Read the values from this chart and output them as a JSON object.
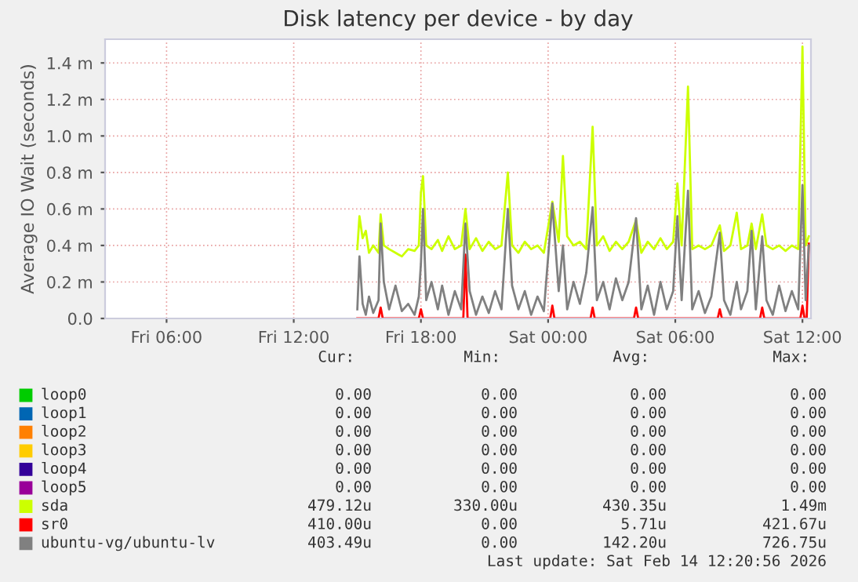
{
  "chart_data": {
    "type": "line",
    "title": "Disk latency per device - by day",
    "ylabel": "Average IO Wait (seconds)",
    "xlim": [
      "2026-02-13T03:06",
      "2026-02-14T12:24"
    ],
    "ylim": [
      0,
      1.53
    ],
    "xticks": [
      {
        "value": "2026-02-13T06:00",
        "label": "Fri 06:00"
      },
      {
        "value": "2026-02-13T12:00",
        "label": "Fri 12:00"
      },
      {
        "value": "2026-02-13T18:00",
        "label": "Fri 18:00"
      },
      {
        "value": "2026-02-14T00:00",
        "label": "Sat 00:00"
      },
      {
        "value": "2026-02-14T06:00",
        "label": "Sat 06:00"
      },
      {
        "value": "2026-02-14T12:00",
        "label": "Sat 12:00"
      }
    ],
    "yticks": [
      {
        "value": 0,
        "label": "0.0"
      },
      {
        "value": 0.2,
        "label": "0.2 m"
      },
      {
        "value": 0.4,
        "label": "0.4 m"
      },
      {
        "value": 0.6,
        "label": "0.6 m"
      },
      {
        "value": 0.8,
        "label": "0.8 m"
      },
      {
        "value": 1.0,
        "label": "1.0 m"
      },
      {
        "value": 1.2,
        "label": "1.2 m"
      },
      {
        "value": 1.4,
        "label": "1.4 m"
      }
    ],
    "grid": true,
    "legend": "bottom",
    "series": [
      {
        "name": "loop0",
        "color": "#00cc00"
      },
      {
        "name": "loop1",
        "color": "#0066b3"
      },
      {
        "name": "loop2",
        "color": "#ff8000"
      },
      {
        "name": "loop3",
        "color": "#ffcc00"
      },
      {
        "name": "loop4",
        "color": "#330099"
      },
      {
        "name": "loop5",
        "color": "#990099"
      },
      {
        "name": "sda",
        "color": "#ccff00",
        "x": [
          "2026-02-13T15:00",
          "2026-02-13T15:06",
          "2026-02-13T15:15",
          "2026-02-13T15:24",
          "2026-02-13T15:33",
          "2026-02-13T15:45",
          "2026-02-13T16:00",
          "2026-02-13T16:06",
          "2026-02-13T16:15",
          "2026-02-13T16:30",
          "2026-02-13T16:48",
          "2026-02-13T17:06",
          "2026-02-13T17:24",
          "2026-02-13T17:42",
          "2026-02-13T17:54",
          "2026-02-13T18:00",
          "2026-02-13T18:06",
          "2026-02-13T18:15",
          "2026-02-13T18:30",
          "2026-02-13T18:48",
          "2026-02-13T19:00",
          "2026-02-13T19:18",
          "2026-02-13T19:36",
          "2026-02-13T19:54",
          "2026-02-13T20:06",
          "2026-02-13T20:18",
          "2026-02-13T20:36",
          "2026-02-13T20:54",
          "2026-02-13T21:12",
          "2026-02-13T21:30",
          "2026-02-13T21:48",
          "2026-02-13T22:06",
          "2026-02-13T22:18",
          "2026-02-13T22:36",
          "2026-02-13T22:54",
          "2026-02-13T23:12",
          "2026-02-13T23:30",
          "2026-02-13T23:48",
          "2026-02-14T00:12",
          "2026-02-14T00:30",
          "2026-02-14T00:42",
          "2026-02-14T00:54",
          "2026-02-14T01:12",
          "2026-02-14T01:30",
          "2026-02-14T01:48",
          "2026-02-14T02:06",
          "2026-02-14T02:18",
          "2026-02-14T02:36",
          "2026-02-14T02:54",
          "2026-02-14T03:12",
          "2026-02-14T03:30",
          "2026-02-14T03:48",
          "2026-02-14T04:09",
          "2026-02-14T04:24",
          "2026-02-14T04:42",
          "2026-02-14T05:00",
          "2026-02-14T05:18",
          "2026-02-14T05:36",
          "2026-02-14T05:54",
          "2026-02-14T06:06",
          "2026-02-14T06:18",
          "2026-02-14T06:36",
          "2026-02-14T06:48",
          "2026-02-14T07:06",
          "2026-02-14T07:24",
          "2026-02-14T07:42",
          "2026-02-14T08:06",
          "2026-02-14T08:18",
          "2026-02-14T08:36",
          "2026-02-14T08:54",
          "2026-02-14T09:06",
          "2026-02-14T09:24",
          "2026-02-14T09:36",
          "2026-02-14T09:48",
          "2026-02-14T10:06",
          "2026-02-14T10:18",
          "2026-02-14T10:36",
          "2026-02-14T10:54",
          "2026-02-14T11:12",
          "2026-02-14T11:30",
          "2026-02-14T11:48",
          "2026-02-14T12:00",
          "2026-02-14T12:09",
          "2026-02-14T12:18"
        ],
        "values": [
          0.38,
          0.56,
          0.44,
          0.48,
          0.36,
          0.4,
          0.36,
          0.57,
          0.4,
          0.38,
          0.36,
          0.34,
          0.38,
          0.37,
          0.4,
          0.69,
          0.78,
          0.4,
          0.38,
          0.43,
          0.37,
          0.45,
          0.38,
          0.4,
          0.6,
          0.38,
          0.44,
          0.37,
          0.42,
          0.38,
          0.4,
          0.8,
          0.4,
          0.36,
          0.42,
          0.38,
          0.4,
          0.36,
          0.64,
          0.42,
          0.89,
          0.45,
          0.4,
          0.42,
          0.38,
          1.05,
          0.4,
          0.45,
          0.37,
          0.42,
          0.38,
          0.42,
          0.54,
          0.36,
          0.42,
          0.38,
          0.44,
          0.38,
          0.42,
          0.74,
          0.4,
          1.27,
          0.38,
          0.4,
          0.38,
          0.4,
          0.51,
          0.37,
          0.4,
          0.58,
          0.38,
          0.4,
          0.52,
          0.38,
          0.57,
          0.4,
          0.38,
          0.4,
          0.37,
          0.4,
          0.38,
          1.49,
          0.4,
          0.45
        ]
      },
      {
        "name": "sr0",
        "color": "#ff0000",
        "x": [
          "2026-02-13T15:00",
          "2026-02-13T16:00",
          "2026-02-13T16:06",
          "2026-02-13T16:12",
          "2026-02-13T17:54",
          "2026-02-13T18:00",
          "2026-02-13T18:06",
          "2026-02-13T20:00",
          "2026-02-13T20:06",
          "2026-02-13T20:12",
          "2026-02-14T00:06",
          "2026-02-14T00:12",
          "2026-02-14T00:18",
          "2026-02-14T02:00",
          "2026-02-14T02:06",
          "2026-02-14T02:12",
          "2026-02-14T04:03",
          "2026-02-14T04:09",
          "2026-02-14T04:15",
          "2026-02-14T08:00",
          "2026-02-14T08:06",
          "2026-02-14T08:12",
          "2026-02-14T10:00",
          "2026-02-14T10:06",
          "2026-02-14T10:12",
          "2026-02-14T11:54",
          "2026-02-14T12:00",
          "2026-02-14T12:06",
          "2026-02-14T12:12",
          "2026-02-14T12:18"
        ],
        "values": [
          0,
          0,
          0.06,
          0,
          0,
          0.05,
          0,
          0,
          0.35,
          0,
          0,
          0.07,
          0,
          0,
          0.06,
          0,
          0,
          0.06,
          0,
          0,
          0.05,
          0,
          0,
          0.06,
          0,
          0,
          0.07,
          0,
          0,
          0.41
        ]
      },
      {
        "name": "ubuntu-vg/ubuntu-lv",
        "color": "#808080",
        "x": [
          "2026-02-13T15:00",
          "2026-02-13T15:06",
          "2026-02-13T15:15",
          "2026-02-13T15:24",
          "2026-02-13T15:33",
          "2026-02-13T15:45",
          "2026-02-13T16:00",
          "2026-02-13T16:06",
          "2026-02-13T16:15",
          "2026-02-13T16:30",
          "2026-02-13T16:48",
          "2026-02-13T17:06",
          "2026-02-13T17:24",
          "2026-02-13T17:42",
          "2026-02-13T17:54",
          "2026-02-13T18:00",
          "2026-02-13T18:06",
          "2026-02-13T18:15",
          "2026-02-13T18:30",
          "2026-02-13T18:48",
          "2026-02-13T19:00",
          "2026-02-13T19:18",
          "2026-02-13T19:36",
          "2026-02-13T19:54",
          "2026-02-13T20:06",
          "2026-02-13T20:18",
          "2026-02-13T20:36",
          "2026-02-13T20:54",
          "2026-02-13T21:12",
          "2026-02-13T21:30",
          "2026-02-13T21:48",
          "2026-02-13T22:06",
          "2026-02-13T22:18",
          "2026-02-13T22:36",
          "2026-02-13T22:54",
          "2026-02-13T23:12",
          "2026-02-13T23:30",
          "2026-02-13T23:48",
          "2026-02-14T00:12",
          "2026-02-14T00:30",
          "2026-02-14T00:42",
          "2026-02-14T00:54",
          "2026-02-14T01:12",
          "2026-02-14T01:30",
          "2026-02-14T01:48",
          "2026-02-14T02:06",
          "2026-02-14T02:18",
          "2026-02-14T02:36",
          "2026-02-14T02:54",
          "2026-02-14T03:12",
          "2026-02-14T03:30",
          "2026-02-14T03:48",
          "2026-02-14T04:09",
          "2026-02-14T04:24",
          "2026-02-14T04:42",
          "2026-02-14T05:00",
          "2026-02-14T05:18",
          "2026-02-14T05:36",
          "2026-02-14T05:54",
          "2026-02-14T06:06",
          "2026-02-14T06:18",
          "2026-02-14T06:36",
          "2026-02-14T06:48",
          "2026-02-14T07:06",
          "2026-02-14T07:24",
          "2026-02-14T07:42",
          "2026-02-14T08:06",
          "2026-02-14T08:18",
          "2026-02-14T08:36",
          "2026-02-14T08:54",
          "2026-02-14T09:06",
          "2026-02-14T09:24",
          "2026-02-14T09:36",
          "2026-02-14T09:48",
          "2026-02-14T10:06",
          "2026-02-14T10:18",
          "2026-02-14T10:36",
          "2026-02-14T10:54",
          "2026-02-14T11:12",
          "2026-02-14T11:30",
          "2026-02-14T11:48",
          "2026-02-14T12:00",
          "2026-02-14T12:09",
          "2026-02-14T12:18"
        ],
        "values": [
          0.05,
          0.34,
          0.08,
          0.02,
          0.12,
          0.03,
          0.1,
          0.52,
          0.2,
          0.05,
          0.18,
          0.04,
          0.08,
          0.02,
          0.12,
          0.3,
          0.6,
          0.1,
          0.2,
          0.05,
          0.18,
          0.02,
          0.15,
          0.05,
          0.52,
          0.15,
          0.02,
          0.12,
          0.03,
          0.15,
          0.05,
          0.6,
          0.18,
          0.05,
          0.15,
          0.02,
          0.12,
          0.04,
          0.63,
          0.15,
          0.4,
          0.05,
          0.2,
          0.08,
          0.25,
          0.61,
          0.1,
          0.2,
          0.05,
          0.22,
          0.1,
          0.2,
          0.55,
          0.05,
          0.18,
          0.02,
          0.2,
          0.05,
          0.15,
          0.56,
          0.1,
          0.7,
          0.05,
          0.15,
          0.03,
          0.12,
          0.47,
          0.1,
          0.02,
          0.2,
          0.05,
          0.15,
          0.48,
          0.05,
          0.45,
          0.1,
          0.02,
          0.18,
          0.04,
          0.15,
          0.05,
          0.73,
          0.1,
          0.4
        ]
      }
    ],
    "annotations": [
      "Cur:",
      "Min:",
      "Avg:",
      "Max:",
      "0.00",
      "0.00",
      "0.00",
      "0.00",
      "0.00",
      "0.00",
      "0.00",
      "0.00",
      "0.00",
      "0.00",
      "0.00",
      "0.00",
      "0.00",
      "0.00",
      "0.00",
      "0.00",
      "0.00",
      "0.00",
      "0.00",
      "0.00",
      "0.00",
      "0.00",
      "0.00",
      "0.00",
      "479.12u",
      "330.00u",
      "430.35u",
      "1.49m",
      "410.00u",
      "0.00",
      "5.71u",
      "421.67u",
      "403.49u",
      "0.00",
      "142.20u",
      "726.75u",
      "Last update: Sat Feb 14 12:20:56 2026"
    ]
  }
}
